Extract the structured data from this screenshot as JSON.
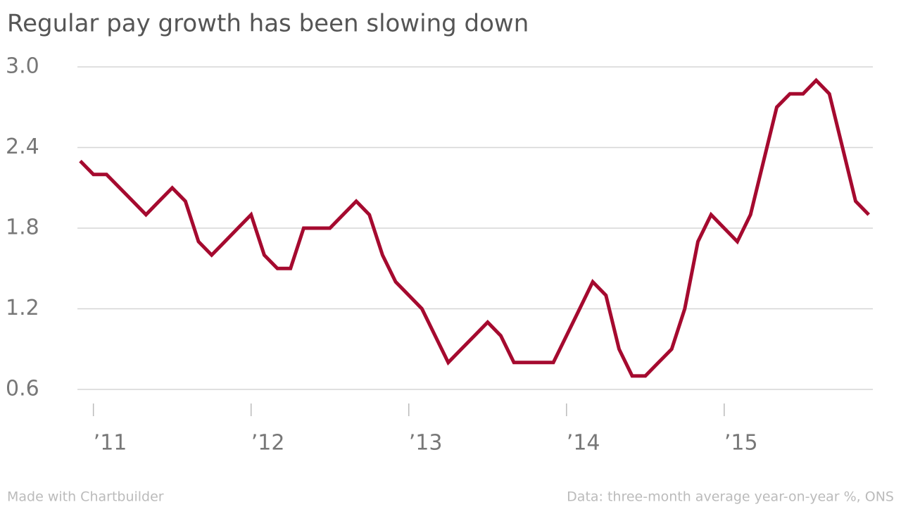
{
  "chart_data": {
    "type": "line",
    "title": "Regular pay growth has been slowing down",
    "footer_left": "Made with Chartbuilder",
    "footer_right": "Data: three-month average year-on-year %, ONS",
    "categories": [
      null,
      "’11",
      null,
      null,
      null,
      null,
      null,
      null,
      null,
      null,
      null,
      null,
      null,
      "’12",
      null,
      null,
      null,
      null,
      null,
      null,
      null,
      null,
      null,
      null,
      null,
      "’13",
      null,
      null,
      null,
      null,
      null,
      null,
      null,
      null,
      null,
      null,
      null,
      "’14",
      null,
      null,
      null,
      null,
      null,
      null,
      null,
      null,
      null,
      null,
      null,
      "’15",
      null,
      null,
      null,
      null,
      null,
      null,
      null,
      null,
      null,
      null,
      null
    ],
    "values": [
      2.3,
      2.2,
      2.2,
      2.1,
      2.0,
      1.9,
      2.0,
      2.1,
      2.0,
      1.7,
      1.6,
      1.7,
      1.8,
      1.9,
      1.6,
      1.5,
      1.5,
      1.8,
      1.8,
      1.8,
      1.9,
      2.0,
      1.9,
      1.6,
      1.4,
      1.3,
      1.2,
      1.0,
      0.8,
      0.9,
      1.0,
      1.1,
      1.0,
      0.8,
      0.8,
      0.8,
      0.8,
      1.0,
      1.2,
      1.4,
      1.3,
      0.9,
      0.7,
      0.7,
      0.8,
      0.9,
      1.2,
      1.7,
      1.9,
      1.8,
      1.7,
      1.9,
      2.3,
      2.7,
      2.8,
      2.8,
      2.9,
      2.8,
      2.4,
      2.0,
      1.9
    ],
    "color": "#a50a2f",
    "ylim": [
      0.6,
      3.0
    ],
    "yticks": [
      {
        "value": 3.0,
        "label": "3.0"
      },
      2.4,
      1.8,
      1.2,
      0.6
    ],
    "grid": true
  }
}
